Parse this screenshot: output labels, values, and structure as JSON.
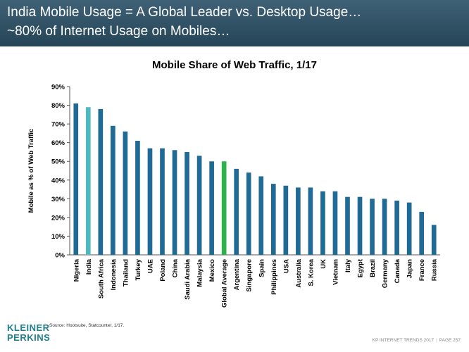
{
  "header": {
    "line1": "India Mobile Usage = A Global Leader vs. Desktop Usage…",
    "line2": "~80% of Internet Usage on Mobiles…"
  },
  "chart_data": {
    "type": "bar",
    "title": "Mobile Share of Web Traffic, 1/17",
    "xlabel": "",
    "ylabel": "Mobile as % of Web Traffic",
    "ylim": [
      0,
      90
    ],
    "yticks": [
      "0%",
      "10%",
      "20%",
      "30%",
      "40%",
      "50%",
      "60%",
      "70%",
      "80%",
      "90%"
    ],
    "grid": false,
    "categories": [
      "Nigeria",
      "India",
      "South Africa",
      "Indonesia",
      "Thailand",
      "Turkey",
      "UAE",
      "Poland",
      "China",
      "Saudi Arabia",
      "Malaysia",
      "Mexico",
      "Global Average",
      "Argentina",
      "Singapore",
      "Spain",
      "Philippines",
      "USA",
      "Australia",
      "S. Korea",
      "UK",
      "Vietnam",
      "Italy",
      "Egypt",
      "Brazil",
      "Germany",
      "Canada",
      "Japan",
      "France",
      "Russia"
    ],
    "values": [
      81,
      79,
      78,
      69,
      66,
      61,
      57,
      57,
      56,
      55,
      53,
      50,
      50,
      46,
      44,
      42,
      38,
      37,
      36,
      36,
      34,
      34,
      31,
      31,
      30,
      30,
      29,
      28,
      23,
      16
    ],
    "colors": {
      "default": "#1f6b96",
      "India": "#4fb9c2",
      "Global Average": "#2db34a"
    }
  },
  "source": "Source: Hootsuite, Statcounter, 1/17.",
  "logo": {
    "line1": "KLEINER",
    "line2": "PERKINS"
  },
  "footer": {
    "left": "KP INTERNET TRENDS 2017",
    "sep": "|",
    "right": "PAGE 257"
  }
}
